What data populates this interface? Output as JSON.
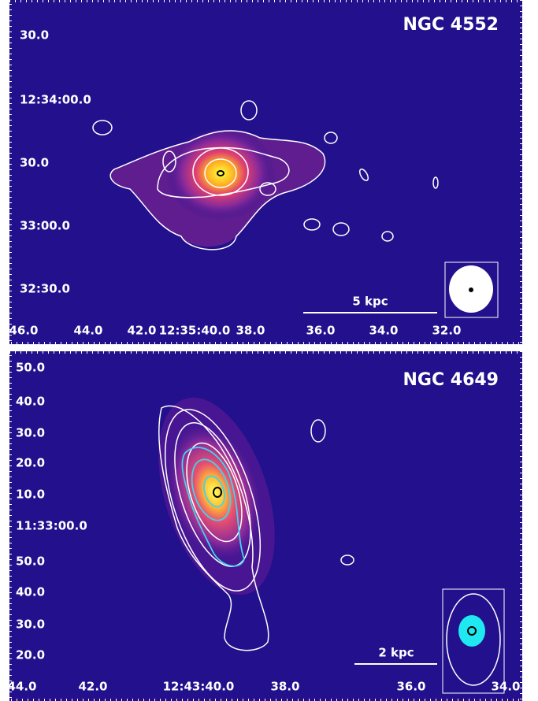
{
  "panels": [
    {
      "title": "NGC 4552",
      "y_labels": [
        "30.0",
        "12:34:00.0",
        "30.0",
        "33:00.0",
        "32:30.0"
      ],
      "x_labels": [
        "46.0",
        "44.0",
        "42.0",
        "12:35:40.0",
        "38.0",
        "36.0",
        "34.0",
        "32.0"
      ],
      "scale_bar": "5 kpc"
    },
    {
      "title": "NGC 4649",
      "y_labels": [
        "50.0",
        "40.0",
        "30.0",
        "20.0",
        "10.0",
        "11:33:00.0",
        "50.0",
        "40.0",
        "30.0",
        "20.0"
      ],
      "x_labels": [
        "44.0",
        "42.0",
        "12:43:40.0",
        "38.0",
        "36.0",
        "34.0"
      ],
      "scale_bar": "2 kpc"
    }
  ]
}
